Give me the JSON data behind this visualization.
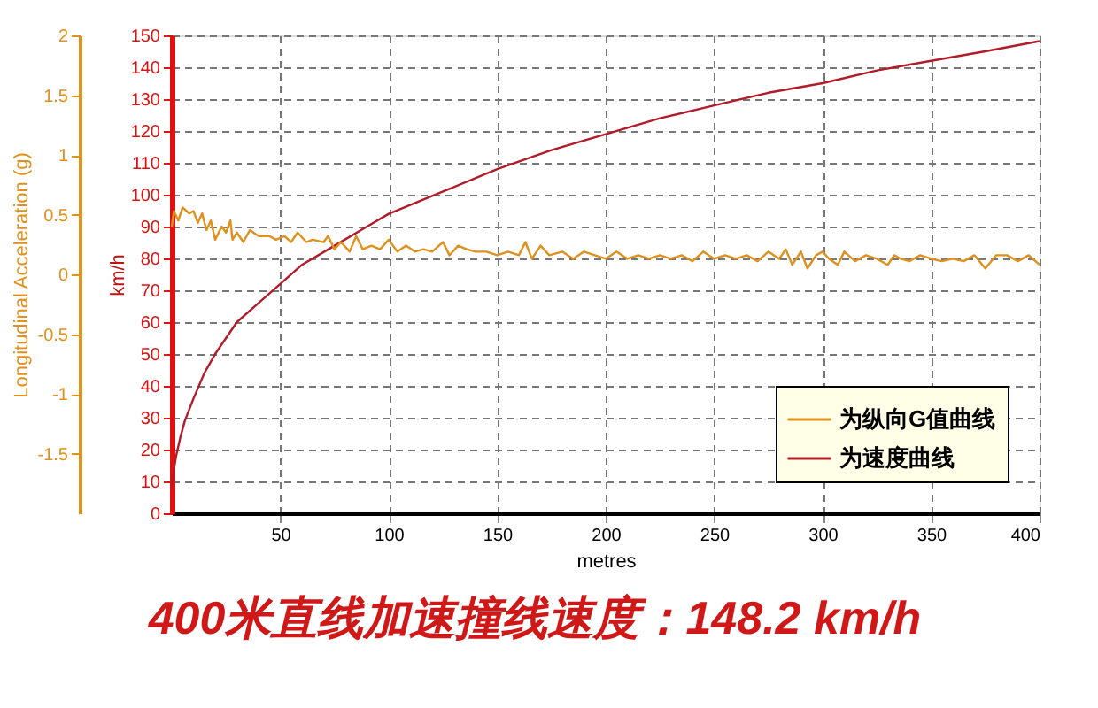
{
  "chart_data": {
    "type": "line",
    "xlabel": "metres",
    "ylabel": "km/h",
    "y2label": "Longitudinal Acceleration (g)",
    "xlim": [
      0,
      400
    ],
    "xticks": [
      50,
      100,
      150,
      200,
      250,
      300,
      350,
      400
    ],
    "ylim": [
      0,
      150
    ],
    "yticks": [
      0,
      10,
      20,
      30,
      40,
      50,
      60,
      70,
      80,
      90,
      100,
      110,
      120,
      130,
      140,
      150
    ],
    "y2lim": [
      -2,
      2
    ],
    "y2ticks": [
      -1.5,
      -1,
      -0.5,
      0,
      0.5,
      1,
      1.5,
      2
    ],
    "grid": true,
    "legend": "bottom right",
    "annotations": [
      "400米直线加速撞线速度：148.2 km/h"
    ],
    "series": [
      {
        "name": "为纵向G值曲线",
        "color": "#e0901c",
        "axis": "y2",
        "x": [
          0,
          1,
          3,
          5,
          8,
          10,
          12,
          14,
          16,
          18,
          20,
          23,
          25,
          27,
          28,
          30,
          33,
          36,
          40,
          45,
          48,
          52,
          55,
          58,
          62,
          65,
          70,
          72,
          75,
          78,
          82,
          85,
          88,
          92,
          96,
          100,
          104,
          108,
          112,
          116,
          120,
          125,
          128,
          132,
          136,
          140,
          145,
          150,
          155,
          160,
          163,
          166,
          170,
          174,
          180,
          185,
          190,
          195,
          200,
          205,
          210,
          215,
          220,
          225,
          230,
          235,
          240,
          245,
          250,
          255,
          260,
          265,
          270,
          275,
          280,
          283,
          286,
          290,
          293,
          297,
          300,
          303,
          307,
          310,
          315,
          320,
          325,
          330,
          333,
          336,
          340,
          345,
          350,
          355,
          360,
          365,
          370,
          375,
          380,
          385,
          390,
          395,
          400
        ],
        "values": [
          0.4,
          0.53,
          0.45,
          0.56,
          0.51,
          0.53,
          0.43,
          0.51,
          0.37,
          0.45,
          0.29,
          0.4,
          0.35,
          0.45,
          0.29,
          0.35,
          0.27,
          0.37,
          0.32,
          0.32,
          0.29,
          0.32,
          0.27,
          0.35,
          0.27,
          0.29,
          0.27,
          0.32,
          0.21,
          0.27,
          0.19,
          0.32,
          0.21,
          0.24,
          0.21,
          0.29,
          0.19,
          0.24,
          0.19,
          0.21,
          0.19,
          0.27,
          0.16,
          0.24,
          0.21,
          0.19,
          0.19,
          0.16,
          0.19,
          0.16,
          0.27,
          0.13,
          0.24,
          0.16,
          0.19,
          0.13,
          0.19,
          0.16,
          0.13,
          0.19,
          0.13,
          0.16,
          0.13,
          0.16,
          0.13,
          0.16,
          0.11,
          0.19,
          0.13,
          0.16,
          0.13,
          0.16,
          0.11,
          0.19,
          0.13,
          0.21,
          0.08,
          0.19,
          0.05,
          0.16,
          0.19,
          0.13,
          0.08,
          0.19,
          0.11,
          0.16,
          0.13,
          0.08,
          0.16,
          0.13,
          0.11,
          0.16,
          0.13,
          0.11,
          0.13,
          0.11,
          0.16,
          0.05,
          0.16,
          0.16,
          0.11,
          0.16,
          0.08
        ]
      },
      {
        "name": "为速度曲线",
        "color": "#b01c2a",
        "axis": "y",
        "x": [
          0,
          1,
          2,
          4,
          6,
          10,
          15,
          20,
          25,
          30,
          40,
          50,
          60,
          75,
          90,
          100,
          125,
          150,
          175,
          200,
          225,
          250,
          275,
          300,
          325,
          350,
          375,
          400
        ],
        "values": [
          8,
          14,
          18,
          24,
          29,
          36,
          44,
          50,
          55,
          60,
          66,
          72,
          78,
          84,
          90,
          94,
          101,
          108,
          114,
          119,
          124,
          128,
          132,
          135,
          139,
          142,
          145,
          148.2
        ]
      }
    ]
  }
}
